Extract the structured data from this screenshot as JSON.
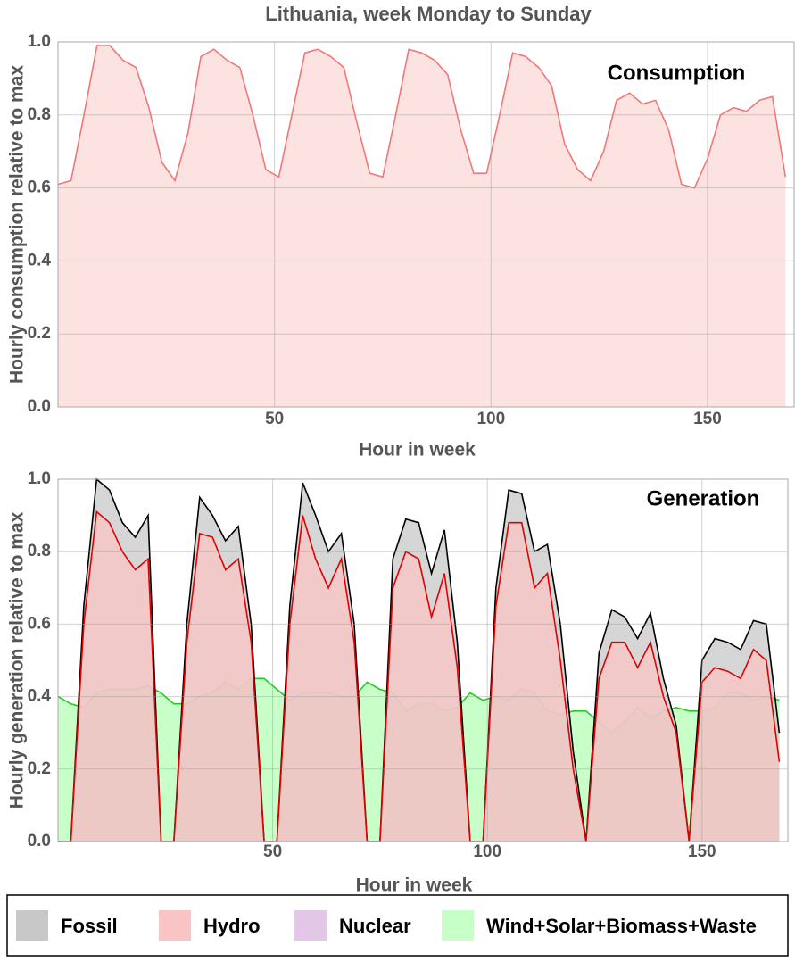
{
  "chart_data": [
    {
      "type": "area",
      "title": "Lithuania, week Monday to Sunday",
      "xlabel": "Hour in week",
      "ylabel": "Hourly consumption relative to max",
      "annotation": "Consumption",
      "xlim": [
        0,
        170
      ],
      "ylim": [
        0,
        1.0
      ],
      "xticks": [
        50,
        100,
        150
      ],
      "yticks": [
        {
          "value": 0,
          "label": "0.0"
        },
        0.2,
        0.4,
        0.6,
        0.8,
        {
          "value": 1,
          "label": "1.0"
        }
      ],
      "grid": true,
      "x": [
        0,
        3,
        6,
        9,
        12,
        15,
        18,
        21,
        24,
        27,
        30,
        33,
        36,
        39,
        42,
        45,
        48,
        51,
        54,
        57,
        60,
        63,
        66,
        69,
        72,
        75,
        78,
        81,
        84,
        87,
        90,
        93,
        96,
        99,
        102,
        105,
        108,
        111,
        114,
        117,
        120,
        123,
        126,
        129,
        132,
        135,
        138,
        141,
        144,
        147,
        150,
        153,
        156,
        159,
        162,
        165,
        168
      ],
      "series": [
        {
          "name": "Consumption",
          "color": "#fde2e2",
          "line_color": "#f07878",
          "values": [
            0.61,
            0.62,
            0.8,
            0.99,
            0.99,
            0.95,
            0.93,
            0.82,
            0.67,
            0.62,
            0.75,
            0.96,
            0.98,
            0.95,
            0.93,
            0.8,
            0.65,
            0.63,
            0.8,
            0.97,
            0.98,
            0.96,
            0.93,
            0.78,
            0.64,
            0.63,
            0.8,
            0.98,
            0.97,
            0.95,
            0.91,
            0.76,
            0.64,
            0.64,
            0.8,
            0.97,
            0.96,
            0.93,
            0.88,
            0.72,
            0.65,
            0.62,
            0.7,
            0.84,
            0.86,
            0.83,
            0.84,
            0.76,
            0.61,
            0.6,
            0.68,
            0.8,
            0.82,
            0.81,
            0.84,
            0.85,
            0.63
          ]
        }
      ]
    },
    {
      "type": "area",
      "xlabel": "Hour in week",
      "ylabel": "Hourly generation relative to max",
      "annotation": "Generation",
      "xlim": [
        0,
        170
      ],
      "ylim": [
        0,
        1.0
      ],
      "xticks": [
        50,
        100,
        150
      ],
      "yticks": [
        {
          "value": 0,
          "label": "0.0"
        },
        0.2,
        0.4,
        0.6,
        0.8,
        {
          "value": 1,
          "label": "1.0"
        }
      ],
      "grid": true,
      "legend": "bottom",
      "x": [
        0,
        3,
        6,
        9,
        12,
        15,
        18,
        21,
        24,
        27,
        30,
        33,
        36,
        39,
        42,
        45,
        48,
        51,
        54,
        57,
        60,
        63,
        66,
        69,
        72,
        75,
        78,
        81,
        84,
        87,
        90,
        93,
        96,
        99,
        102,
        105,
        108,
        111,
        114,
        117,
        120,
        123,
        126,
        129,
        132,
        135,
        138,
        141,
        144,
        147,
        150,
        153,
        156,
        159,
        162,
        165,
        168
      ],
      "series": [
        {
          "name": "Fossil",
          "color": "#c8c8c8",
          "line_color": "#000000",
          "values": [
            0,
            0,
            0.65,
            1.0,
            0.97,
            0.88,
            0.84,
            0.9,
            0,
            0,
            0.6,
            0.95,
            0.9,
            0.83,
            0.87,
            0.6,
            0,
            0,
            0.65,
            0.99,
            0.9,
            0.8,
            0.85,
            0.6,
            0,
            0,
            0.78,
            0.89,
            0.88,
            0.74,
            0.86,
            0.55,
            0,
            0,
            0.7,
            0.97,
            0.96,
            0.8,
            0.82,
            0.6,
            0.25,
            0,
            0.52,
            0.64,
            0.62,
            0.56,
            0.63,
            0.45,
            0.32,
            0,
            0.5,
            0.56,
            0.55,
            0.53,
            0.61,
            0.6,
            0.3
          ]
        },
        {
          "name": "Hydro",
          "color": "#f9c4c4",
          "line_color": "#e00000",
          "values": [
            0,
            0,
            0.6,
            0.91,
            0.88,
            0.8,
            0.75,
            0.78,
            0,
            0,
            0.55,
            0.85,
            0.84,
            0.75,
            0.78,
            0.55,
            0,
            0,
            0.6,
            0.9,
            0.78,
            0.7,
            0.78,
            0.55,
            0,
            0,
            0.7,
            0.8,
            0.78,
            0.62,
            0.74,
            0.48,
            0,
            0,
            0.65,
            0.88,
            0.88,
            0.7,
            0.74,
            0.5,
            0.2,
            0,
            0.45,
            0.55,
            0.55,
            0.48,
            0.55,
            0.4,
            0.3,
            0,
            0.44,
            0.48,
            0.47,
            0.45,
            0.53,
            0.5,
            0.22
          ]
        },
        {
          "name": "Nuclear",
          "color": "#e2c8e6",
          "line_color": "#e2c8e6",
          "values": [
            0,
            0,
            0,
            0,
            0,
            0,
            0,
            0,
            0,
            0,
            0,
            0,
            0,
            0,
            0,
            0,
            0,
            0,
            0,
            0,
            0,
            0,
            0,
            0,
            0,
            0,
            0,
            0,
            0,
            0,
            0,
            0,
            0,
            0,
            0,
            0,
            0,
            0,
            0,
            0,
            0,
            0,
            0,
            0,
            0,
            0,
            0,
            0,
            0,
            0,
            0,
            0,
            0,
            0,
            0,
            0,
            0
          ]
        },
        {
          "name": "Wind+Solar+Biomass+Waste",
          "color": "#c8ffc8",
          "line_color": "#22cc22",
          "values": [
            0.4,
            0.38,
            0.37,
            0.41,
            0.42,
            0.42,
            0.42,
            0.43,
            0.41,
            0.38,
            0.38,
            0.4,
            0.41,
            0.44,
            0.42,
            0.45,
            0.45,
            0.42,
            0.39,
            0.41,
            0.41,
            0.41,
            0.4,
            0.4,
            0.44,
            0.42,
            0.41,
            0.36,
            0.38,
            0.38,
            0.36,
            0.37,
            0.41,
            0.39,
            0.4,
            0.39,
            0.42,
            0.41,
            0.36,
            0.35,
            0.36,
            0.36,
            0.33,
            0.3,
            0.33,
            0.37,
            0.34,
            0.36,
            0.37,
            0.36,
            0.36,
            0.37,
            0.41,
            0.41,
            0.39,
            0.4,
            0.39
          ]
        }
      ]
    }
  ]
}
